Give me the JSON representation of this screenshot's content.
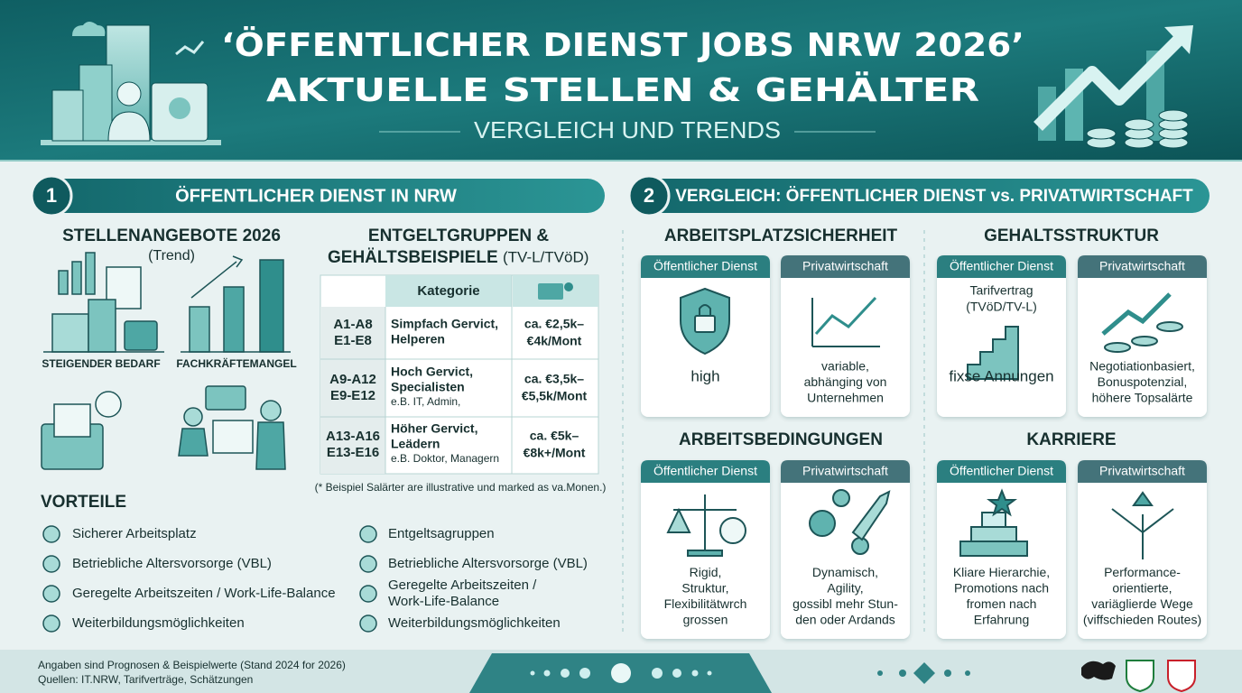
{
  "header": {
    "title_line1": "‘ÖFFENTLICHER DIENST JOBS NRW 2026’",
    "title_line2": "AKTUELLE STELLEN & GEHÄLTER",
    "subtitle": "VERGLEICH UND TRENDS"
  },
  "section1": {
    "number": "1",
    "title": "ÖFFENTLICHER DIENST IN NRW",
    "stellen": {
      "title": "STELLENANGEBOTE 2026",
      "subtitle": "(Trend)",
      "labels": [
        "STEIGENDER BEDARF",
        "FACHKRÄFTEMANGEL"
      ]
    },
    "entgelt": {
      "title_line1": "ENTGELTGRUPPEN &",
      "title_line2": "GEHÄLTSBEISPIELE",
      "title_suffix": "(TV-L/TVöD)",
      "table_header": "Kategorie",
      "rows": [
        {
          "grades": [
            "A1-A8",
            "E1-E8"
          ],
          "desc": [
            "Simpfach Gervict,",
            "Helperen"
          ],
          "salary": [
            "ca. €2,5k–",
            "€4k/Mont"
          ]
        },
        {
          "grades": [
            "A9-A12",
            "E9-E12"
          ],
          "desc": [
            "Hoch Gervict,",
            "Specialisten"
          ],
          "example": "e.B. IT, Admin,",
          "salary": [
            "ca. €3,5k–",
            "€5,5k/Mont"
          ]
        },
        {
          "grades": [
            "A13-A16",
            "E13-E16"
          ],
          "desc": [
            "Höher Gervict,",
            "Leädern"
          ],
          "example": "e.B. Doktor, Managern",
          "salary": [
            "ca. €5k–",
            "€8k+/Mont"
          ]
        }
      ],
      "note": "(* Beispiel Salärter are illustrative und marked as va.Monen.)"
    },
    "vorteile": {
      "title": "VORTEILE",
      "left": [
        "Sicherer Arbeitsplatz",
        "Betriebliche Altersvorsorge (VBL)",
        "Geregelte Arbeitszeiten / Work-Life-Balance",
        "Weiterbildungsmöglichkeiten"
      ],
      "right": [
        [
          "Entgeltsagruppen"
        ],
        [
          "Betriebliche Altersvorsorge (VBL)"
        ],
        [
          "Geregelte Arbeitszeiten /",
          "Work-Life-Balance"
        ],
        [
          "Weiterbildungsmöglichkeiten"
        ]
      ]
    }
  },
  "section2": {
    "number": "2",
    "title": "VERGLEICH: ÖFFENTLICHER DIENST vs. PRIVATWIRTSCHAFT",
    "panels": [
      {
        "title": "ARBEITSPLATZSICHERHEIT",
        "public": {
          "label": "Öffentlicher Dienst",
          "text": [
            "high"
          ]
        },
        "private": {
          "label": "Privatwirtschaft",
          "text": [
            "variable,",
            "abhänging von",
            "Unternehmen"
          ]
        }
      },
      {
        "title": "GEHALTSSTRUKTUR",
        "public": {
          "label": "Öffentlicher Dienst",
          "top": [
            "Tarifvertrag",
            "(TVöD/TV-L)"
          ],
          "text": [
            "fixse Annungen"
          ]
        },
        "private": {
          "label": "Privatwirtschaft",
          "text": [
            "Negotiationbasiert,",
            "Bonuspotenzial,",
            "höhere Topsalärte"
          ]
        }
      },
      {
        "title": "ARBEITSBEDINGUNGEN",
        "public": {
          "label": "Öffentlicher Dienst",
          "text": [
            "Rigid,",
            "Struktur,",
            "Flexibilitätwrch",
            "grossen"
          ]
        },
        "private": {
          "label": "Privatwirtschaft",
          "text": [
            "Dynamisch,",
            "Agility,",
            "gossibl mehr Stun-",
            "den oder Ardands"
          ]
        }
      },
      {
        "title": "KARRIERE",
        "public": {
          "label": "Öffentlicher Dienst",
          "text": [
            "Kliare Hierarchie,",
            "Promotions nach",
            "fromen nach",
            "Erfahrung"
          ]
        },
        "private": {
          "label": "Privatwirtschaft",
          "text": [
            "Performance-",
            "orientierte,",
            "variäglierde Wege",
            "(viffschieden Routes)"
          ]
        }
      }
    ]
  },
  "footer": {
    "note": "Angaben sind Prognosen & Beispielwerte (Stand 2024 for 2026)",
    "sources": "Quellen: IT.NRW, Tarifverträge, Schätzungen"
  }
}
